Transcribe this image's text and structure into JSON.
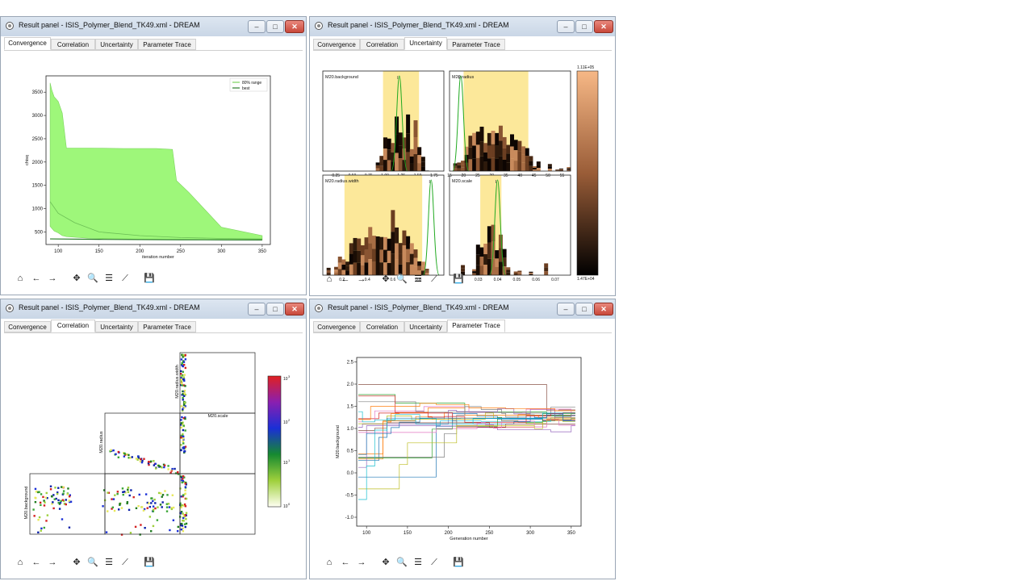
{
  "windows": [
    {
      "title": "Result panel - ISIS_Polymer_Blend_TK49.xml - DREAM",
      "tabs": [
        "Convergence",
        "Correlation",
        "Uncertainty",
        "Parameter Trace"
      ],
      "active_tab": "Convergence"
    },
    {
      "title": "Result panel - ISIS_Polymer_Blend_TK49.xml - DREAM",
      "tabs": [
        "Convergence",
        "Correlation",
        "Uncertainty",
        "Parameter Trace"
      ],
      "active_tab": "Uncertainty"
    },
    {
      "title": "Result panel - ISIS_Polymer_Blend_TK49.xml - DREAM",
      "tabs": [
        "Convergence",
        "Correlation",
        "Uncertainty",
        "Parameter Trace"
      ],
      "active_tab": "Correlation"
    },
    {
      "title": "Result panel - ISIS_Polymer_Blend_TK49.xml - DREAM",
      "tabs": [
        "Convergence",
        "Correlation",
        "Uncertainty",
        "Parameter Trace"
      ],
      "active_tab": "Parameter Trace"
    }
  ],
  "window_buttons": {
    "minimize": "–",
    "maximize": "□",
    "close": "✕"
  },
  "toolbar_icons": [
    {
      "name": "home-icon",
      "glyph": "⌂"
    },
    {
      "name": "back-icon",
      "glyph": "←"
    },
    {
      "name": "forward-icon",
      "glyph": "→"
    },
    {
      "name": "pan-icon",
      "glyph": "✥"
    },
    {
      "name": "zoom-icon",
      "glyph": "🔍"
    },
    {
      "name": "configure-subplots-icon",
      "glyph": "☰"
    },
    {
      "name": "edit-axis-icon",
      "glyph": "⟋"
    },
    {
      "name": "save-icon",
      "glyph": "💾"
    }
  ],
  "colors": {
    "range_fill": "#9ef77a",
    "best_line": "#2a7a2a",
    "range_line": "#7bd35d",
    "cred_band": "#fce89a",
    "green_curve": "#22aa22"
  },
  "chart_data": [
    {
      "type": "area",
      "title": "",
      "xlabel": "iteration number",
      "ylabel": "chisq",
      "xlim": [
        85,
        360
      ],
      "ylim": [
        230,
        3850
      ],
      "xticks": [
        100,
        150,
        200,
        250,
        300,
        350
      ],
      "yticks": [
        500,
        1000,
        1500,
        2000,
        2500,
        3000,
        3500
      ],
      "legend": [
        "80% range",
        "best"
      ],
      "legend_position": "top-right",
      "series": [
        {
          "name": "80% range",
          "x": [
            90,
            92,
            95,
            100,
            105,
            110,
            140,
            180,
            200,
            210,
            220,
            240,
            245,
            260,
            300,
            350
          ],
          "lower": [
            620,
            580,
            520,
            480,
            420,
            400,
            360,
            350,
            345,
            340,
            340,
            335,
            335,
            335,
            330,
            330
          ],
          "upper": [
            3700,
            3550,
            3400,
            3300,
            3050,
            2300,
            2300,
            2290,
            2290,
            2290,
            2290,
            2270,
            1600,
            1350,
            600,
            420
          ]
        },
        {
          "name": "best",
          "x": [
            90,
            150,
            200,
            250,
            300,
            350
          ],
          "values": [
            350,
            340,
            335,
            332,
            330,
            328
          ]
        }
      ],
      "inner_line": {
        "x": [
          90,
          100,
          120,
          150,
          200,
          250,
          300,
          350
        ],
        "values": [
          1150,
          900,
          700,
          500,
          420,
          380,
          360,
          350
        ]
      }
    },
    {
      "type": "bar",
      "subplots": [
        {
          "title": "M20.background",
          "xticks": [
            "0.25",
            "0.50",
            "0.75",
            "1.00",
            "1.25",
            "1.50",
            "1.75"
          ],
          "xlim": [
            0.05,
            1.9
          ],
          "band": [
            0.97,
            1.52
          ],
          "peak": 1.22
        },
        {
          "title": "M20.radius",
          "xticks": [
            "15",
            "20",
            "25",
            "30",
            "35",
            "40",
            "45",
            "50",
            "55"
          ],
          "xlim": [
            15,
            58
          ],
          "band": [
            20,
            43
          ],
          "peak": 19
        },
        {
          "title": "M20.radius.width",
          "xticks": [
            "0.2",
            "0.4",
            "0.6",
            "0.8"
          ],
          "xlim": [
            0.05,
            1.0
          ],
          "band": [
            0.22,
            0.83
          ],
          "peak": 0.9
        },
        {
          "title": "M20.scale",
          "xticks": [
            "0.02",
            "0.03",
            "0.04",
            "0.05",
            "0.06",
            "0.07"
          ],
          "xlim": [
            0.015,
            0.078
          ],
          "band": [
            0.031,
            0.042
          ],
          "peak": 0.04
        }
      ],
      "colorbar": {
        "max": "1.11E+05",
        "min": "1.47E+04"
      }
    },
    {
      "type": "heatmap",
      "labels": [
        "M20.radius.width",
        "M20.scale",
        "M20.radius",
        "M20.background"
      ],
      "colorbar_ticks": [
        "10",
        "10",
        "10",
        "10",
        "10"
      ],
      "colorbar_exponents": [
        "0",
        "1",
        "2",
        "3",
        "3"
      ]
    },
    {
      "type": "line",
      "xlabel": "Generation number",
      "ylabel": "M20.background",
      "xlim": [
        88,
        362
      ],
      "ylim": [
        -1.2,
        2.6
      ],
      "xticks": [
        100,
        150,
        200,
        250,
        300,
        350
      ],
      "yticks": [
        -1.0,
        -0.5,
        0.0,
        0.5,
        1.0,
        1.5,
        2.0,
        2.5
      ]
    }
  ]
}
